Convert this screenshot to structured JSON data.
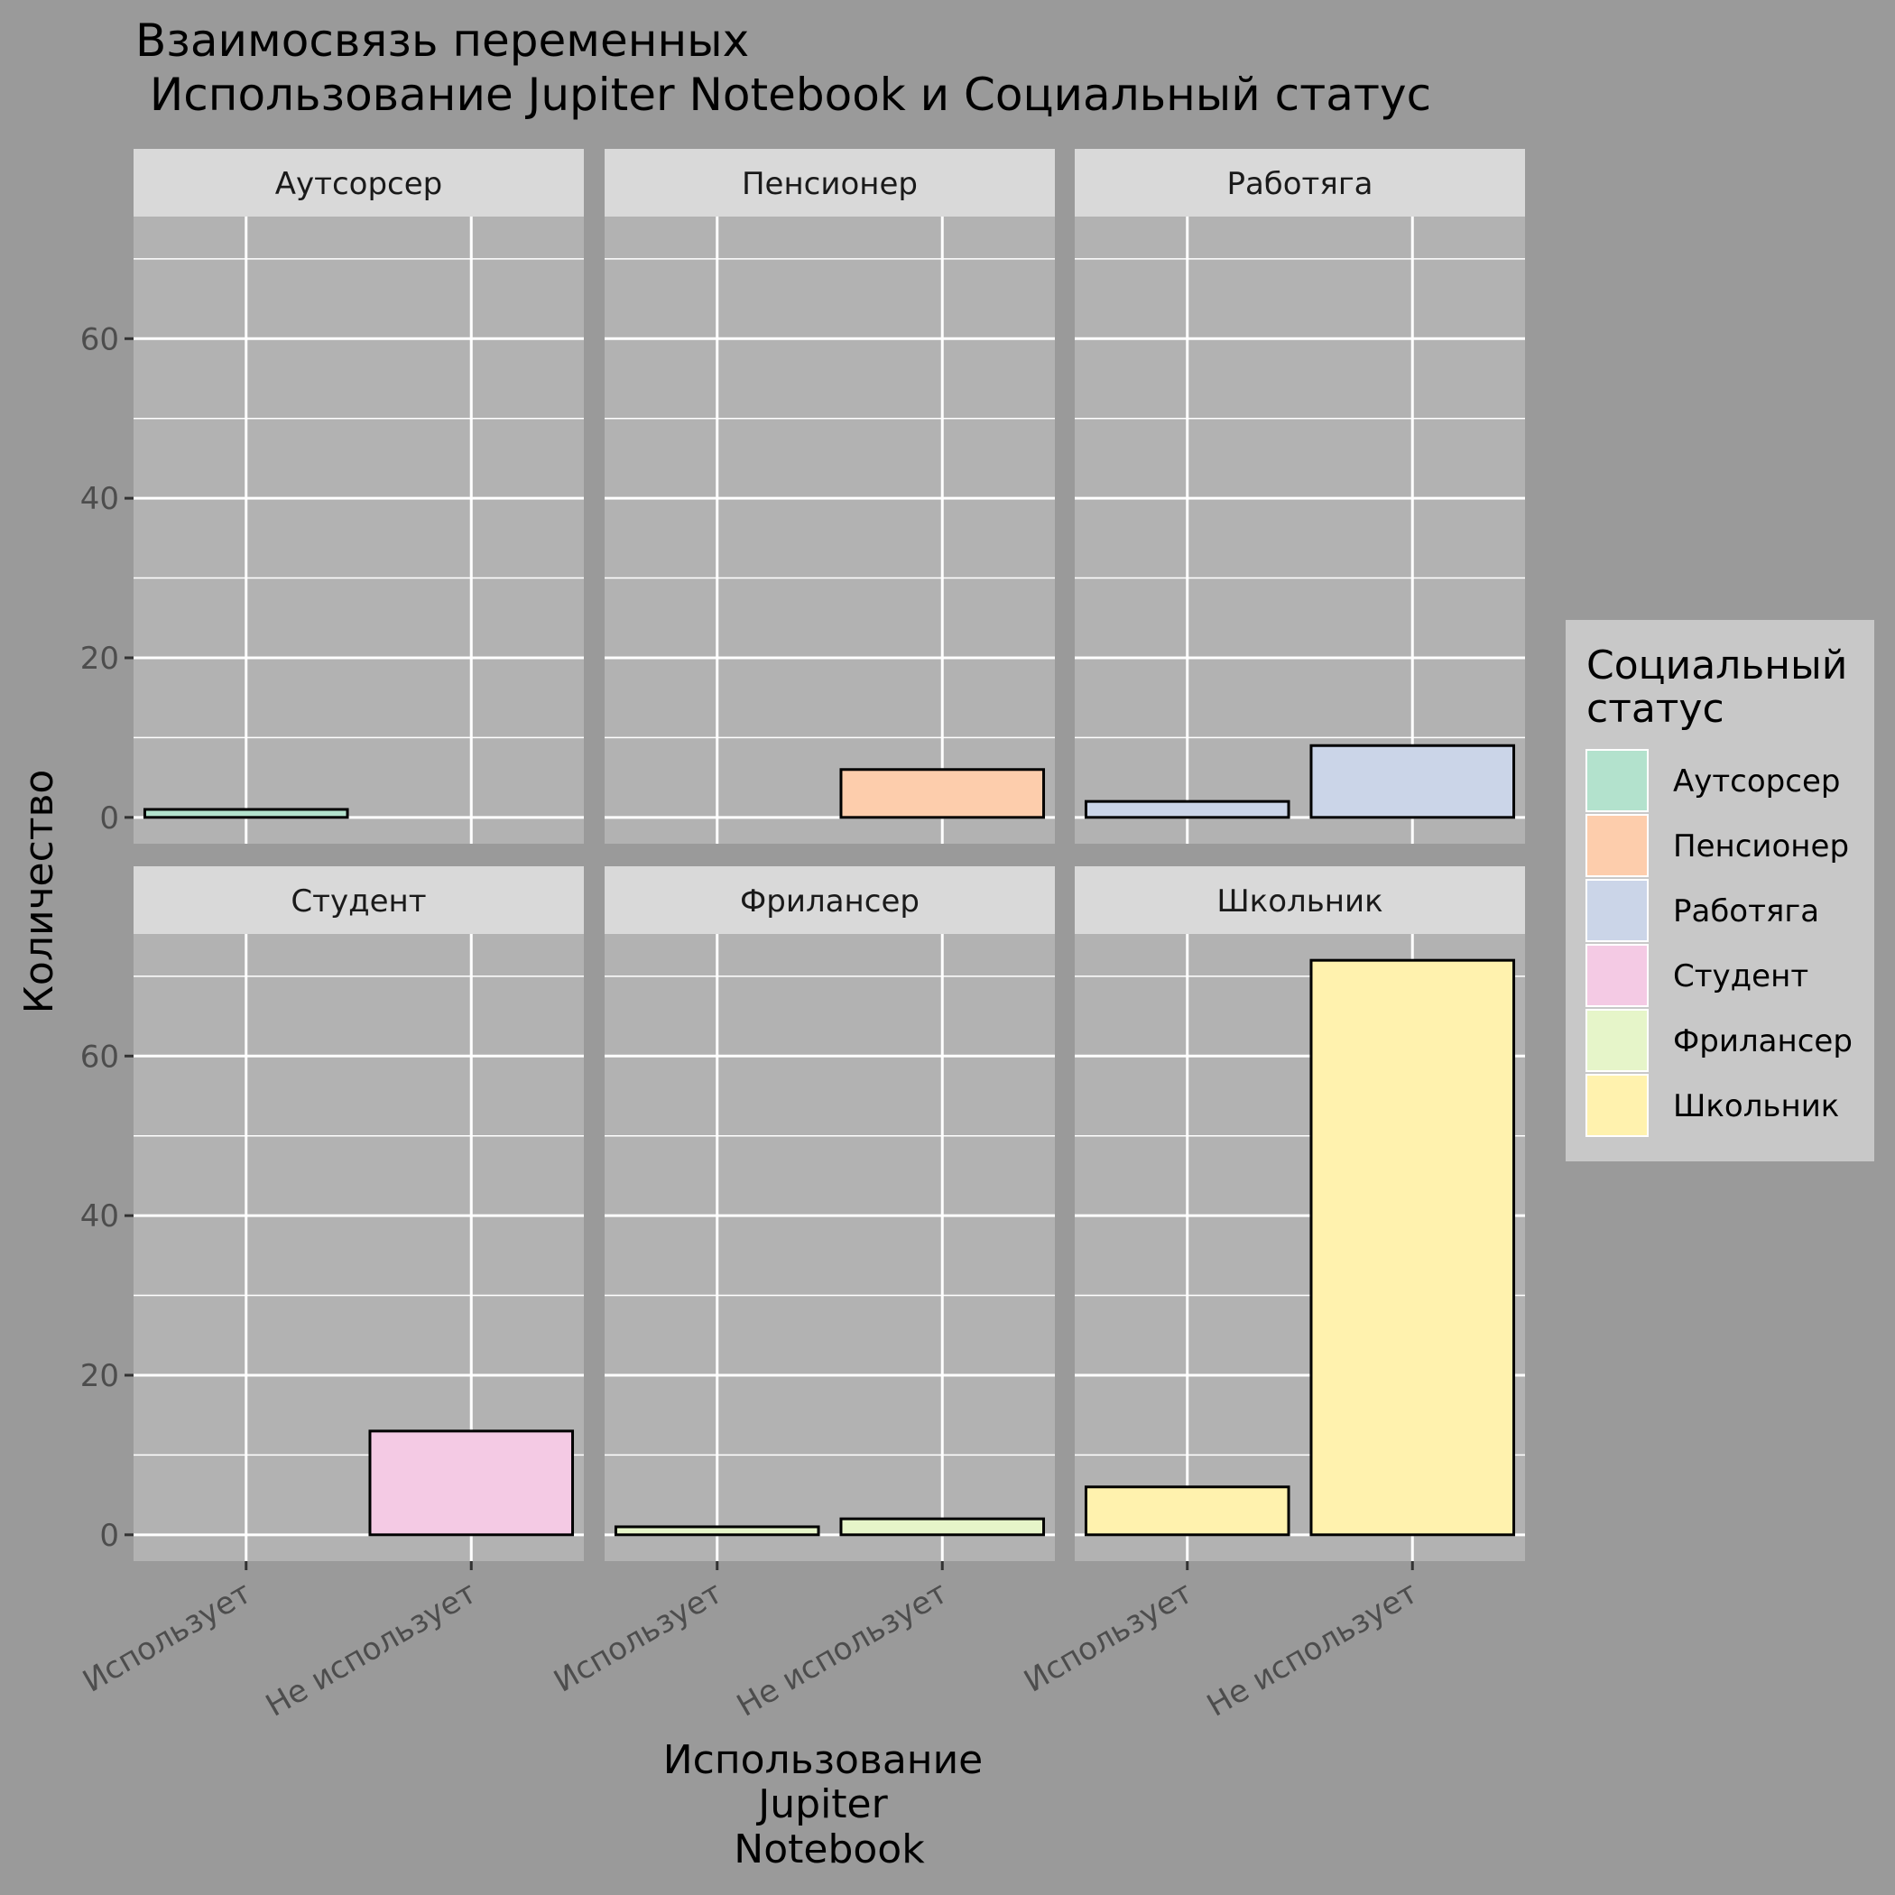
{
  "title_lines": [
    "Взаимосвязь переменных",
    " Использование Jupiter Notebook и Социальный статус"
  ],
  "colors": {
    "page_bg": "#9a9a9a",
    "panel_bg": "#b2b2b2",
    "strip_bg": "#d9d9d9",
    "grid": "#ffffff",
    "legend_bg": "#c8c8c8",
    "bar_outline": "#000000"
  },
  "chart_data": {
    "type": "bar",
    "facet_layout": "2x3 grid",
    "categories": [
      "Использует",
      "Не использует"
    ],
    "facets": [
      {
        "name": "Аутсорсер",
        "color": "#b3e2cd",
        "values": [
          1,
          0
        ]
      },
      {
        "name": "Пенсионер",
        "color": "#fdcdac",
        "values": [
          0,
          6
        ]
      },
      {
        "name": "Работяга",
        "color": "#cbd5e8",
        "values": [
          2,
          9
        ]
      },
      {
        "name": "Студент",
        "color": "#f4cae4",
        "values": [
          0,
          13
        ]
      },
      {
        "name": "Фрилансер",
        "color": "#e6f5c9",
        "values": [
          1,
          2
        ]
      },
      {
        "name": "Школьник",
        "color": "#fff2ae",
        "values": [
          6,
          72
        ]
      }
    ],
    "ylim": [
      -3.3,
      75.3
    ],
    "yticks": [
      0,
      20,
      40,
      60
    ],
    "xlabel_lines": [
      "Использование",
      "Jupiter",
      "Notebook"
    ],
    "ylabel": "Количество",
    "grid": true,
    "legend": {
      "title_lines": [
        "Социальный",
        "статус"
      ],
      "position": "right"
    }
  }
}
